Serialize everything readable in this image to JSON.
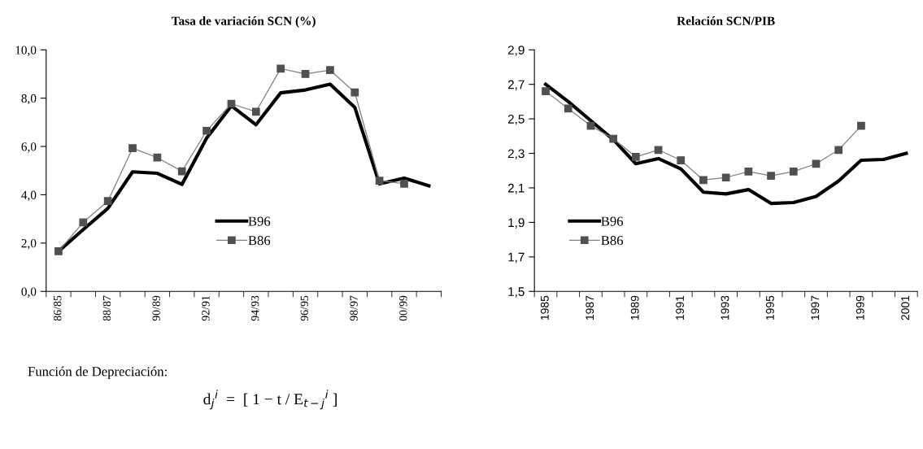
{
  "chart_data": [
    {
      "type": "line",
      "title": "Tasa de variación SCN (%)",
      "categories": [
        "86/85",
        null,
        "88/87",
        null,
        "90/89",
        null,
        "92/91",
        null,
        "94/93",
        null,
        "96/95",
        null,
        "98/97",
        null,
        "00/99",
        null
      ],
      "series": [
        {
          "name": "B96",
          "color": "#000000",
          "marker": "none",
          "values": [
            1.66,
            2.56,
            3.44,
            4.95,
            4.89,
            4.43,
            6.35,
            7.68,
            6.9,
            8.22,
            8.34,
            8.58,
            7.62,
            4.45,
            4.69,
            4.37
          ]
        },
        {
          "name": "B86",
          "color": "#808080",
          "marker": "square",
          "values": [
            1.66,
            2.86,
            3.74,
            5.93,
            5.54,
            4.97,
            6.65,
            7.77,
            7.44,
            9.22,
            9.0,
            9.16,
            8.24,
            4.58,
            4.46,
            null
          ]
        }
      ],
      "ylim": [
        0,
        10
      ],
      "yticks": [
        {
          "value": 0,
          "label": "0,0"
        },
        {
          "value": 2,
          "label": "2,0"
        },
        {
          "value": 4,
          "label": "4,0"
        },
        {
          "value": 6,
          "label": "6,0"
        },
        {
          "value": 8,
          "label": "8,0"
        },
        {
          "value": 10,
          "label": "10,0"
        }
      ],
      "grid": false,
      "legend": "bottom",
      "annotations": [
        "Función de Depreciación:",
        "d$_{j}$$^{i}$  =  [ 1 − t / E$_{t−j}$$^{i}$ ]"
      ]
    },
    {
      "type": "line",
      "title": "Relación SCN/PIB",
      "categories": [
        "1985",
        null,
        "1987",
        null,
        "1989",
        null,
        "1991",
        null,
        "1993",
        null,
        "1995",
        null,
        "1997",
        null,
        "1999",
        null,
        "2001"
      ],
      "series": [
        {
          "name": "B96",
          "color": "#000000",
          "marker": "none",
          "values": [
            2.7,
            2.6,
            2.49,
            2.38,
            2.24,
            2.27,
            2.21,
            2.075,
            2.065,
            2.09,
            2.01,
            2.015,
            2.05,
            2.14,
            2.26,
            2.265,
            2.3
          ]
        },
        {
          "name": "B86",
          "color": "#808080",
          "marker": "square",
          "values": [
            2.66,
            2.56,
            2.46,
            2.385,
            2.28,
            2.32,
            2.26,
            2.145,
            2.16,
            2.195,
            2.17,
            2.195,
            2.24,
            2.32,
            2.46,
            null,
            null
          ]
        }
      ],
      "ylim": [
        1.5,
        2.9
      ],
      "yticks": [
        {
          "value": 1.5,
          "label": "1,5"
        },
        {
          "value": 1.7,
          "label": "1,7"
        },
        {
          "value": 1.9,
          "label": "1,9"
        },
        {
          "value": 2.1,
          "label": "2,1"
        },
        {
          "value": 2.3,
          "label": "2,3"
        },
        {
          "value": 2.5,
          "label": "2,5"
        },
        {
          "value": 2.7,
          "label": "2,7"
        },
        {
          "value": 2.9,
          "label": "2,9"
        }
      ],
      "grid": false,
      "legend": "bottom left"
    }
  ]
}
